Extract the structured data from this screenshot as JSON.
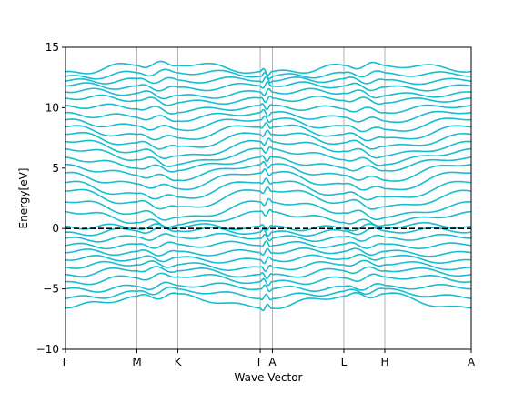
{
  "chart_data": {
    "type": "line",
    "title": "",
    "xlabel": "Wave Vector",
    "ylabel": "Energy[eV]",
    "ylim": [
      -10,
      15
    ],
    "yticks": [
      -10,
      -5,
      0,
      5,
      10,
      15
    ],
    "ytick_labels": [
      "−10",
      "−5",
      "0",
      "5",
      "10",
      "15"
    ],
    "xlim": [
      0,
      1
    ],
    "high_symmetry_points": [
      {
        "label": "Γ",
        "x": 0.0
      },
      {
        "label": "M",
        "x": 0.176
      },
      {
        "label": "K",
        "x": 0.277
      },
      {
        "label": "Γ",
        "x": 0.48
      },
      {
        "label": "A",
        "x": 0.51
      },
      {
        "label": "L",
        "x": 0.686
      },
      {
        "label": "H",
        "x": 0.787
      },
      {
        "label": "A",
        "x": 1.0
      }
    ],
    "fermi_level": 0,
    "band_color": "#17BECF",
    "fermi_color": "#000000",
    "grid": "vertical lines at high-symmetry points",
    "series": [
      {
        "values_at_points": [
          -6.6,
          -5.6,
          -5.4,
          -6.6,
          -6.6,
          -5.6,
          -5.4,
          -6.6
        ]
      },
      {
        "values_at_points": [
          -5.8,
          -5.2,
          -5.0,
          -5.8,
          -5.8,
          -5.2,
          -5.0,
          -5.8
        ]
      },
      {
        "values_at_points": [
          -5.0,
          -4.8,
          -4.7,
          -5.0,
          -5.0,
          -4.8,
          -4.7,
          -5.0
        ]
      },
      {
        "values_at_points": [
          -4.4,
          -4.1,
          -4.0,
          -4.4,
          -4.4,
          -4.1,
          -4.0,
          -4.4
        ]
      },
      {
        "values_at_points": [
          -3.8,
          -3.5,
          -3.5,
          -3.8,
          -3.8,
          -3.5,
          -3.5,
          -3.8
        ]
      },
      {
        "values_at_points": [
          -3.2,
          -3.0,
          -3.0,
          -3.2,
          -3.2,
          -3.0,
          -3.0,
          -3.2
        ]
      },
      {
        "values_at_points": [
          -2.6,
          -2.5,
          -2.4,
          -2.6,
          -2.6,
          -2.5,
          -2.4,
          -2.6
        ]
      },
      {
        "values_at_points": [
          -2.0,
          -1.9,
          -1.9,
          -2.0,
          -2.0,
          -1.9,
          -1.9,
          -2.0
        ]
      },
      {
        "values_at_points": [
          -1.4,
          -1.3,
          -1.3,
          -1.4,
          -1.4,
          -1.3,
          -1.3,
          -1.4
        ]
      },
      {
        "values_at_points": [
          -0.8,
          -0.7,
          -0.7,
          -0.8,
          -0.8,
          -0.7,
          -0.7,
          -0.8
        ]
      },
      {
        "values_at_points": [
          -0.3,
          -0.2,
          -0.2,
          -0.3,
          -0.3,
          -0.2,
          -0.2,
          -0.3
        ]
      },
      {
        "values_at_points": [
          0.2,
          0.0,
          0.1,
          0.2,
          0.2,
          0.0,
          0.1,
          0.2
        ]
      },
      {
        "values_at_points": [
          1.4,
          0.5,
          0.3,
          1.4,
          1.4,
          0.5,
          0.3,
          1.4
        ]
      },
      {
        "values_at_points": [
          2.2,
          1.3,
          0.9,
          2.2,
          2.2,
          1.3,
          0.9,
          2.2
        ]
      },
      {
        "values_at_points": [
          3.1,
          2.2,
          1.8,
          3.1,
          3.1,
          2.2,
          1.8,
          3.1
        ]
      },
      {
        "values_at_points": [
          3.8,
          2.9,
          2.6,
          3.8,
          3.8,
          2.9,
          2.6,
          3.8
        ]
      },
      {
        "values_at_points": [
          4.6,
          3.7,
          3.3,
          4.6,
          4.6,
          3.7,
          3.3,
          4.6
        ]
      },
      {
        "values_at_points": [
          5.3,
          4.4,
          4.0,
          5.3,
          5.3,
          4.4,
          4.0,
          5.3
        ]
      },
      {
        "values_at_points": [
          5.9,
          5.0,
          4.8,
          5.9,
          5.9,
          5.0,
          4.8,
          5.9
        ]
      },
      {
        "values_at_points": [
          6.6,
          5.7,
          5.3,
          6.6,
          6.6,
          5.7,
          5.3,
          6.6
        ]
      },
      {
        "values_at_points": [
          7.2,
          6.4,
          6.0,
          7.2,
          7.2,
          6.4,
          6.0,
          7.2
        ]
      },
      {
        "values_at_points": [
          7.8,
          7.1,
          6.8,
          7.8,
          7.8,
          7.1,
          6.8,
          7.8
        ]
      },
      {
        "values_at_points": [
          8.4,
          7.8,
          7.5,
          8.4,
          8.4,
          7.8,
          7.5,
          8.4
        ]
      },
      {
        "values_at_points": [
          9.0,
          8.5,
          8.2,
          9.0,
          9.0,
          8.5,
          8.2,
          9.0
        ]
      },
      {
        "values_at_points": [
          9.6,
          9.2,
          8.9,
          9.6,
          9.6,
          9.2,
          8.9,
          9.6
        ]
      },
      {
        "values_at_points": [
          10.2,
          9.9,
          9.6,
          10.2,
          10.2,
          9.9,
          9.6,
          10.2
        ]
      },
      {
        "values_at_points": [
          10.8,
          10.6,
          10.4,
          10.8,
          10.8,
          10.6,
          10.4,
          10.8
        ]
      },
      {
        "values_at_points": [
          11.3,
          11.2,
          11.0,
          11.3,
          11.3,
          11.2,
          11.0,
          11.3
        ]
      },
      {
        "values_at_points": [
          11.8,
          11.8,
          11.7,
          11.8,
          11.8,
          11.8,
          11.7,
          11.8
        ]
      },
      {
        "values_at_points": [
          12.2,
          12.4,
          12.3,
          12.2,
          12.2,
          12.4,
          12.3,
          12.2
        ]
      },
      {
        "values_at_points": [
          12.6,
          12.9,
          12.9,
          12.6,
          12.6,
          12.9,
          12.9,
          12.6
        ]
      },
      {
        "values_at_points": [
          13.0,
          13.5,
          13.5,
          13.0,
          13.0,
          13.5,
          13.5,
          13.0
        ]
      }
    ]
  }
}
